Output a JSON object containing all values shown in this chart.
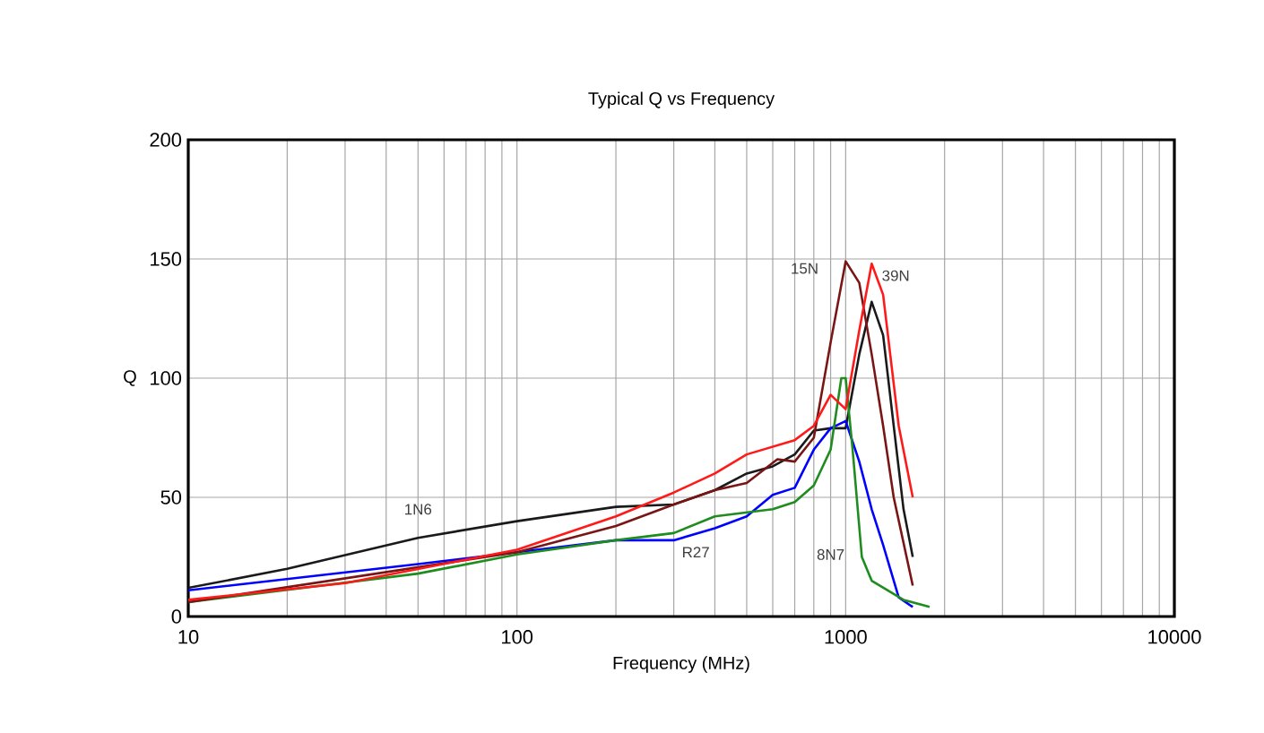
{
  "chart_data": {
    "type": "line",
    "title": "Typical Q vs Frequency",
    "xlabel": "Frequency (MHz)",
    "ylabel": "Q",
    "log": "x",
    "grid": true,
    "legend": false,
    "xlim": [
      10,
      10000
    ],
    "xticks": [
      10,
      100,
      1000,
      10000
    ],
    "ylim": [
      0,
      200
    ],
    "yticks": [
      0,
      50,
      100,
      150,
      200
    ],
    "series": [
      {
        "name": "1N6",
        "color": "#1a1a1a",
        "x": [
          10,
          20,
          50,
          100,
          200,
          300,
          400,
          500,
          600,
          700,
          800,
          900,
          1000,
          1100,
          1200,
          1300,
          1400,
          1500,
          1600
        ],
        "values": [
          12,
          20,
          33,
          40,
          46,
          47,
          53,
          60,
          63,
          68,
          78,
          79,
          79,
          110,
          132,
          118,
          80,
          45,
          25
        ]
      },
      {
        "name": "R27",
        "color": "#0000ff",
        "x": [
          10,
          50,
          100,
          200,
          300,
          400,
          500,
          600,
          700,
          800,
          900,
          1000,
          1100,
          1200,
          1300,
          1450,
          1600
        ],
        "values": [
          11,
          22,
          27,
          32,
          32,
          37,
          42,
          51,
          54,
          70,
          79,
          82,
          65,
          45,
          30,
          8,
          4
        ]
      },
      {
        "name": "8N7",
        "color": "#1e8c1e",
        "x": [
          10,
          50,
          100,
          200,
          300,
          400,
          600,
          700,
          800,
          900,
          970,
          1000,
          1050,
          1120,
          1200,
          1500,
          1800
        ],
        "values": [
          6,
          18,
          26,
          32,
          35,
          42,
          45,
          48,
          55,
          70,
          100,
          100,
          70,
          25,
          15,
          7,
          4
        ]
      },
      {
        "name": "15N",
        "color": "#7a1515",
        "x": [
          10,
          100,
          200,
          300,
          400,
          500,
          620,
          700,
          800,
          900,
          1000,
          1100,
          1200,
          1300,
          1400,
          1600
        ],
        "values": [
          6,
          27,
          38,
          47,
          53,
          56,
          66,
          65,
          75,
          115,
          149,
          140,
          110,
          80,
          50,
          13
        ]
      },
      {
        "name": "39N",
        "color": "#ff1a1a",
        "x": [
          10,
          30,
          100,
          200,
          300,
          400,
          500,
          700,
          800,
          900,
          1000,
          1100,
          1200,
          1300,
          1450,
          1600
        ],
        "values": [
          7,
          14,
          28,
          42,
          52,
          60,
          68,
          74,
          80,
          93,
          87,
          120,
          148,
          135,
          80,
          50
        ]
      }
    ]
  }
}
